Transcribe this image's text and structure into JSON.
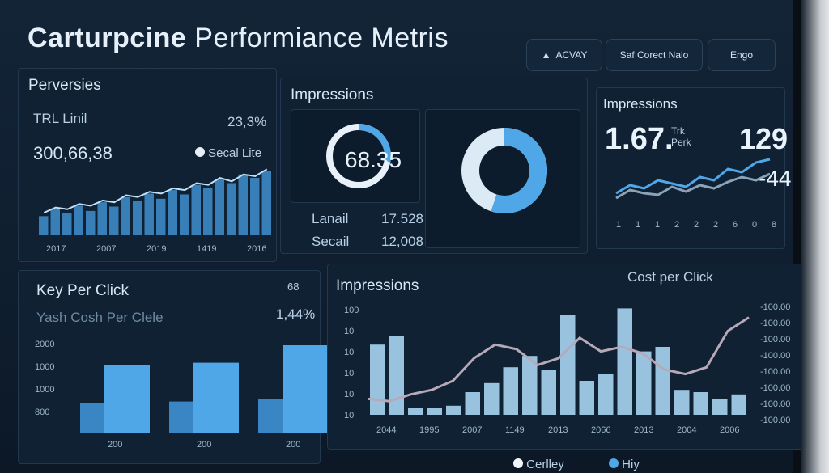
{
  "header": {
    "title_part1": "Carturpcine",
    "title_part2": "Performiance Metris",
    "buttons": [
      {
        "label": "ACVAY",
        "icon": "user-icon"
      },
      {
        "label": "Saf Corect Nalo"
      },
      {
        "label": "Engo"
      }
    ]
  },
  "panel_conversions": {
    "title": "Perversies",
    "row1_label": "TRL Linil",
    "row1_value": "23,3%",
    "row2_value": "300,66,38",
    "legend_label": "Secal Lite",
    "x_labels": [
      "2017",
      "2007",
      "2019",
      "1419",
      "2016"
    ],
    "series": [
      22,
      30,
      26,
      34,
      28,
      38,
      33,
      44,
      40,
      48,
      42,
      52,
      47,
      58,
      54,
      64,
      60,
      70,
      66,
      74
    ],
    "line": [
      26,
      32,
      30,
      36,
      34,
      40,
      38,
      46,
      44,
      50,
      48,
      54,
      52,
      60,
      58,
      66,
      62,
      70,
      68,
      76
    ]
  },
  "panel_impressions_a": {
    "title": "Impressions",
    "gauge_value": "68.35",
    "gauge_fraction": 0.72,
    "donut_fraction": 0.55,
    "rows": [
      {
        "label": "Lanail",
        "value": "17.528"
      },
      {
        "label": "Secail",
        "value": "12,008"
      }
    ]
  },
  "panel_impressions_b": {
    "title": "Impressions",
    "value_left": "1.67.",
    "value_left_small": "Trk\nPerk",
    "value_right": "129",
    "value_right_sub": "-44",
    "x_labels": [
      "1",
      "1",
      "1",
      "2",
      "2",
      "2",
      "6",
      "0",
      "8"
    ],
    "line_a": [
      20,
      30,
      26,
      36,
      32,
      28,
      40,
      36,
      50,
      46,
      58,
      62
    ],
    "line_b": [
      14,
      24,
      20,
      18,
      28,
      22,
      30,
      26,
      34,
      40,
      36,
      44
    ]
  },
  "panel_cpc": {
    "title": "Key Per Click",
    "subtitle": "Yash Cosh Per Clele",
    "badge": "68",
    "value": "1,44%",
    "y_labels": [
      "2000",
      "1000",
      "1000",
      "800"
    ],
    "x_labels": [
      "200",
      "200",
      "200"
    ],
    "bars": [
      30,
      70,
      32,
      72,
      35,
      90
    ]
  },
  "panel_main": {
    "title": "Impressions",
    "right_title": "Cost per Click",
    "y_labels": [
      "100",
      "10",
      "10",
      "10",
      "10",
      "10"
    ],
    "y_right_labels": [
      "-100.00",
      "-100.00",
      "-100.00",
      "-100.00",
      "-100.00",
      "-100.00",
      "-100.00",
      "-100.00"
    ],
    "x_labels": [
      "2044",
      "1995",
      "2007",
      "1149",
      "2013",
      "2066",
      "2013",
      "2004",
      "2006"
    ],
    "bars": [
      62,
      70,
      6,
      6,
      8,
      20,
      28,
      42,
      52,
      40,
      88,
      30,
      36,
      94,
      56,
      60,
      22,
      20,
      14,
      18
    ],
    "line": [
      14,
      12,
      18,
      22,
      30,
      50,
      62,
      58,
      44,
      50,
      68,
      56,
      60,
      54,
      40,
      36,
      42,
      74,
      86
    ]
  },
  "footer": {
    "legend": [
      {
        "label": "Cerlley",
        "color": "#f2f6fa"
      },
      {
        "label": "Hiy",
        "color": "#4fa7e8"
      }
    ]
  },
  "colors": {
    "accent": "#4fa7e8",
    "light": "#a9d4f2",
    "line": "#b8a9b8"
  }
}
